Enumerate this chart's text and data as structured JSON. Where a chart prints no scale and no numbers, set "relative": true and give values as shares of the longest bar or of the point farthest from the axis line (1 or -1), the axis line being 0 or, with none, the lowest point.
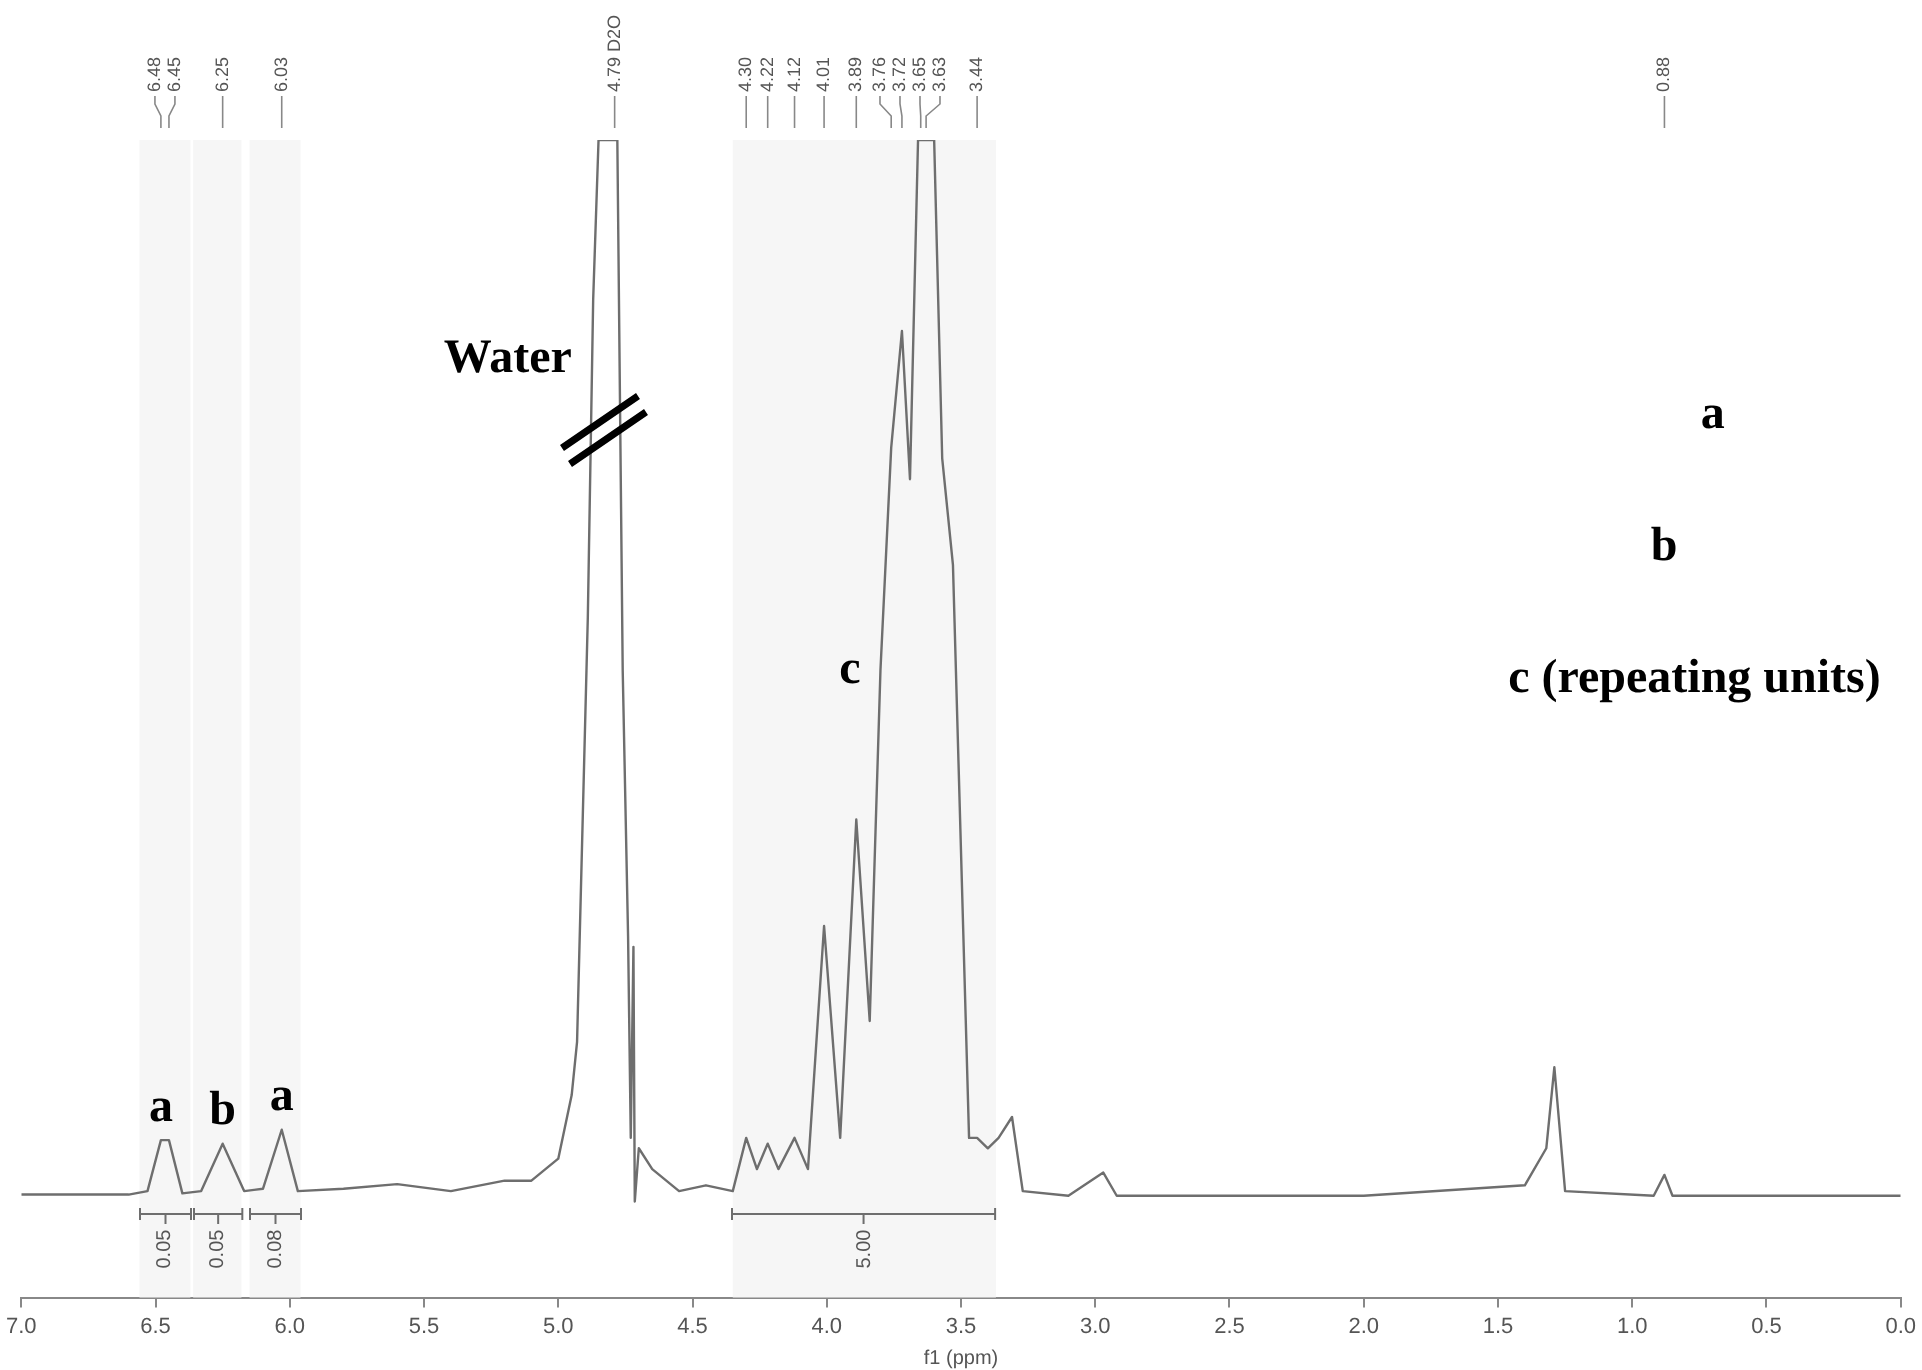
{
  "chart_data": {
    "type": "line",
    "relative": true,
    "xlabel": "f1 (ppm)",
    "color": "#6e6e6e",
    "marker": "none",
    "legend": false,
    "grid": false,
    "x": [
      7.0,
      6.6,
      6.53,
      6.48,
      6.45,
      6.4,
      6.33,
      6.25,
      6.17,
      6.1,
      6.03,
      5.97,
      5.8,
      5.6,
      5.4,
      5.2,
      5.1,
      5.0,
      4.95,
      4.93,
      4.89,
      4.87,
      4.85,
      4.78,
      4.76,
      4.74,
      4.73,
      4.72,
      4.715,
      4.7,
      4.65,
      4.55,
      4.45,
      4.35,
      4.3,
      4.26,
      4.22,
      4.18,
      4.12,
      4.07,
      4.01,
      3.95,
      3.89,
      3.84,
      3.8,
      3.76,
      3.72,
      3.69,
      3.66,
      3.63,
      3.6,
      3.57,
      3.53,
      3.47,
      3.44,
      3.4,
      3.36,
      3.31,
      3.27,
      3.1,
      2.97,
      2.92,
      2.0,
      1.4,
      1.32,
      1.29,
      1.25,
      0.92,
      0.88,
      0.85,
      0.0
    ],
    "values": [
      0.089,
      0.089,
      0.092,
      0.136,
      0.136,
      0.09,
      0.092,
      0.133,
      0.092,
      0.094,
      0.145,
      0.092,
      0.094,
      0.098,
      0.092,
      0.101,
      0.101,
      0.12,
      0.175,
      0.221,
      0.587,
      0.862,
      1,
      1,
      0.542,
      0.312,
      0.138,
      0.303,
      0.083,
      0.129,
      0.111,
      0.092,
      0.097,
      0.092,
      0.138,
      0.111,
      0.133,
      0.111,
      0.138,
      0.111,
      0.321,
      0.138,
      0.413,
      0.239,
      0.542,
      0.734,
      0.835,
      0.707,
      1,
      1,
      1,
      0.725,
      0.633,
      0.138,
      0.138,
      0.129,
      0.138,
      0.156,
      0.092,
      0.088,
      0.108,
      0.088,
      0.088,
      0.097,
      0.129,
      0.199,
      0.092,
      0.088,
      0.106,
      0.088,
      0.088
    ],
    "xlim": [
      7.0,
      0.0
    ],
    "xticks": [
      {
        "value": 7,
        "label": "7.0"
      },
      6.5,
      {
        "value": 6,
        "label": "6.0"
      },
      5.5,
      {
        "value": 5,
        "label": "5.0"
      },
      4.5,
      {
        "value": 4,
        "label": "4.0"
      },
      3.5,
      {
        "value": 3,
        "label": "3.0"
      },
      2.5,
      {
        "value": 2,
        "label": "2.0"
      },
      1.5,
      {
        "value": 1,
        "label": "1.0"
      },
      0.5,
      {
        "value": 0,
        "label": "0.0"
      }
    ],
    "tick_labels": "x",
    "bands": [
      {
        "axis": "x",
        "from": 6.56,
        "to": 6.37,
        "label": "0.05",
        "color": "#f6f6f6"
      },
      {
        "axis": "x",
        "from": 6.36,
        "to": 6.18,
        "label": "0.05",
        "color": "#f6f6f6"
      },
      {
        "axis": "x",
        "from": 6.15,
        "to": 5.96,
        "label": "0.08",
        "color": "#f6f6f6"
      },
      {
        "axis": "x",
        "from": 4.35,
        "to": 3.37,
        "label": "5.00",
        "color": "#f6f6f6"
      }
    ],
    "annotations": [
      {
        "text": "6.48",
        "x": 6.48
      },
      {
        "text": "6.45",
        "x": 6.45
      },
      {
        "text": "6.25",
        "x": 6.25
      },
      {
        "text": "6.03",
        "x": 6.03
      },
      {
        "text": "4.79 D2O",
        "x": 4.79
      },
      {
        "text": "4.30",
        "x": 4.3
      },
      {
        "text": "4.22",
        "x": 4.22
      },
      {
        "text": "4.12",
        "x": 4.12
      },
      {
        "text": "4.01",
        "x": 4.01
      },
      {
        "text": "3.89",
        "x": 3.89
      },
      {
        "text": "3.76",
        "x": 3.76
      },
      {
        "text": "3.72",
        "x": 3.72
      },
      {
        "text": "3.65",
        "x": 3.65
      },
      {
        "text": "3.63",
        "x": 3.63
      },
      {
        "text": "3.44",
        "x": 3.44
      },
      {
        "text": "0.88",
        "x": 0.88
      },
      {
        "text": "a",
        "x": 6.48,
        "y": 0.136
      },
      {
        "text": "b",
        "x": 6.25,
        "y": 0.133
      },
      {
        "text": "a",
        "x": 6.03,
        "y": 0.145
      },
      {
        "text": "Water",
        "x": 4.875,
        "y": 0.81
      },
      {
        "text": "c",
        "x": 3.8,
        "y": 0.542
      },
      "a",
      "b",
      "c (repeating units)"
    ]
  }
}
